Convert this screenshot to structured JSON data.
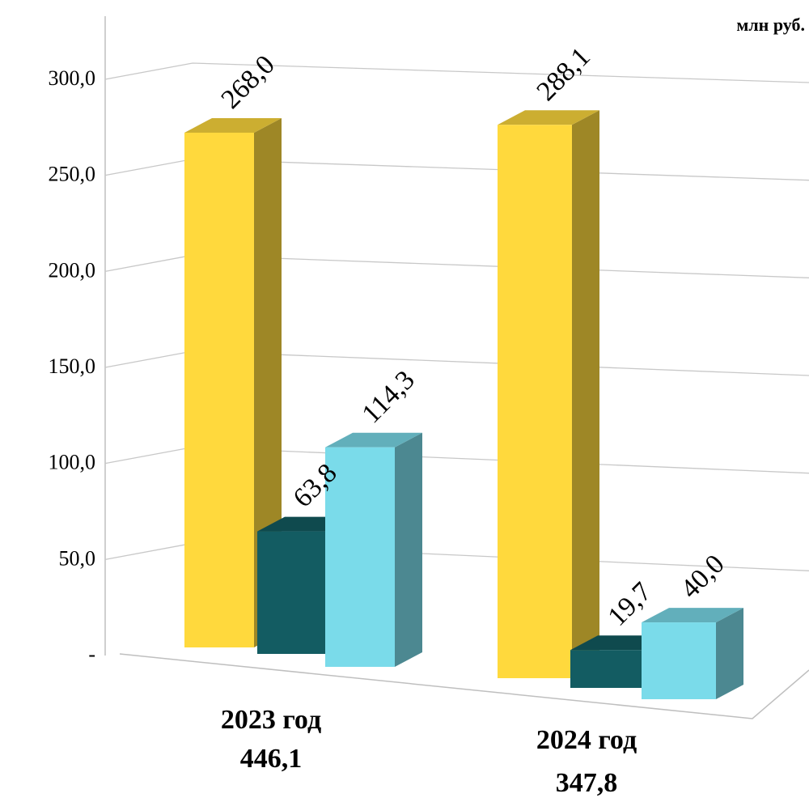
{
  "chart_data": {
    "type": "bar",
    "title": "",
    "unit_label": "млн руб.",
    "categories": [
      "2023 год",
      "2024 год"
    ],
    "category_totals": [
      "446,1",
      "347,8"
    ],
    "series": [
      {
        "values": [
          268.0,
          288.1
        ],
        "labels": [
          "268,0",
          "288,1"
        ],
        "color": "#FFD93D"
      },
      {
        "values": [
          63.8,
          19.7
        ],
        "labels": [
          "63,8",
          "19,7"
        ],
        "color": "#135C62"
      },
      {
        "values": [
          114.3,
          40.0
        ],
        "labels": [
          "114,3",
          "40,0"
        ],
        "color": "#7ADBEA"
      }
    ],
    "ylim": [
      0,
      300
    ],
    "y_ticks": [
      {
        "value": 0,
        "label": "-"
      },
      {
        "value": 50,
        "label": "50,0"
      },
      {
        "value": 100,
        "label": "100,0"
      },
      {
        "value": 150,
        "label": "150,0"
      },
      {
        "value": 200,
        "label": "200,0"
      },
      {
        "value": 250,
        "label": "250,0"
      },
      {
        "value": 300,
        "label": "300,0"
      }
    ],
    "grid": true,
    "style": "3d-column"
  }
}
